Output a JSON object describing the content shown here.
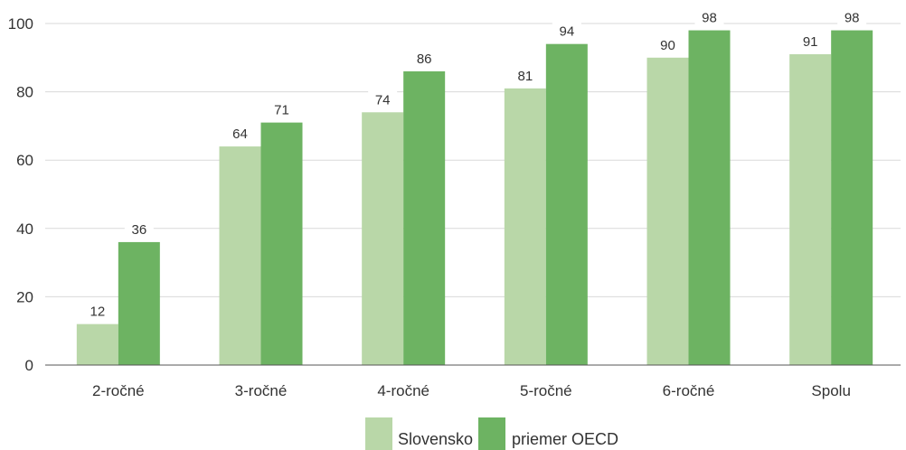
{
  "chart_data": {
    "type": "bar",
    "categories": [
      "2-ročné",
      "3-ročné",
      "4-ročné",
      "5-ročné",
      "6-ročné",
      "Spolu"
    ],
    "series": [
      {
        "name": "Slovensko",
        "values": [
          12,
          64,
          74,
          81,
          90,
          91
        ],
        "color": "#b9d7a8"
      },
      {
        "name": "priemer OECD",
        "values": [
          36,
          71,
          86,
          94,
          98,
          98
        ],
        "color": "#6db362"
      }
    ],
    "yticks": [
      0,
      20,
      40,
      60,
      80,
      100
    ],
    "ylim": [
      0,
      100
    ],
    "title": "",
    "xlabel": "",
    "ylabel": "",
    "grid": true,
    "legend_position": "bottom-center"
  }
}
